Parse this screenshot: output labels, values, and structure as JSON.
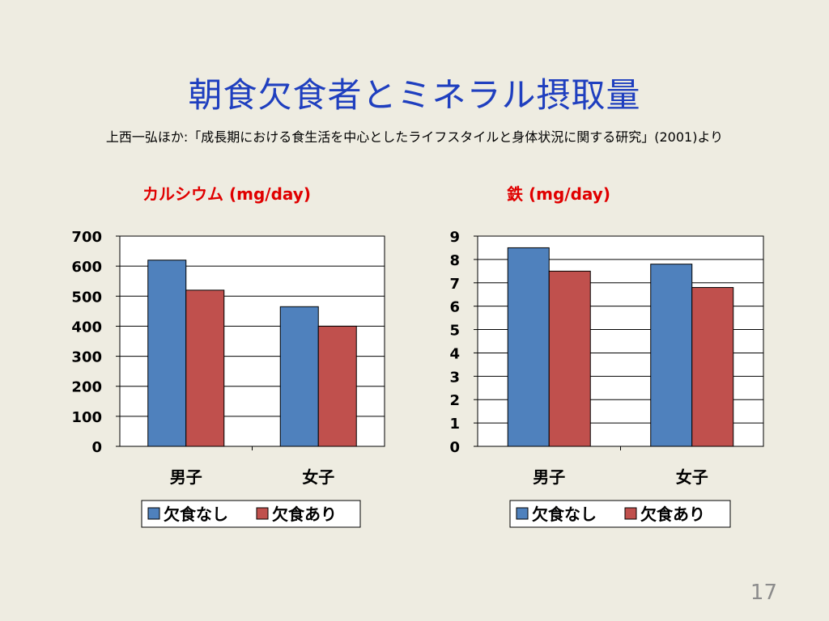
{
  "slide": {
    "title": "朝食欠食者とミネラル摂取量",
    "source": "上西一弘ほか:「成長期における食生活を中心としたライフスタイルと身体状況に関する研究」(2001)より",
    "page_number": "17"
  },
  "colors": {
    "series1": "#4F81BD",
    "series2": "#C0504D",
    "title_text": "#1F3FBF",
    "chart_title_text": "#E00000"
  },
  "chart_data": [
    {
      "type": "bar",
      "title": "カルシウム (mg/day)",
      "categories": [
        "男子",
        "女子"
      ],
      "series": [
        {
          "name": "欠食なし",
          "values": [
            620,
            465
          ]
        },
        {
          "name": "欠食あり",
          "values": [
            520,
            400
          ]
        }
      ],
      "ylim": [
        0,
        700
      ],
      "yticks": [
        "0",
        "100",
        "200",
        "300",
        "400",
        "500",
        "600",
        "700"
      ],
      "grid": true,
      "legend": "bottom"
    },
    {
      "type": "bar",
      "title": "鉄 (mg/day)",
      "categories": [
        "男子",
        "女子"
      ],
      "series": [
        {
          "name": "欠食なし",
          "values": [
            8.5,
            7.8
          ]
        },
        {
          "name": "欠食あり",
          "values": [
            7.5,
            6.8
          ]
        }
      ],
      "ylim": [
        0,
        9
      ],
      "yticks": [
        "0",
        "1",
        "2",
        "3",
        "4",
        "5",
        "6",
        "7",
        "8",
        "9"
      ],
      "grid": true,
      "legend": "bottom"
    }
  ]
}
